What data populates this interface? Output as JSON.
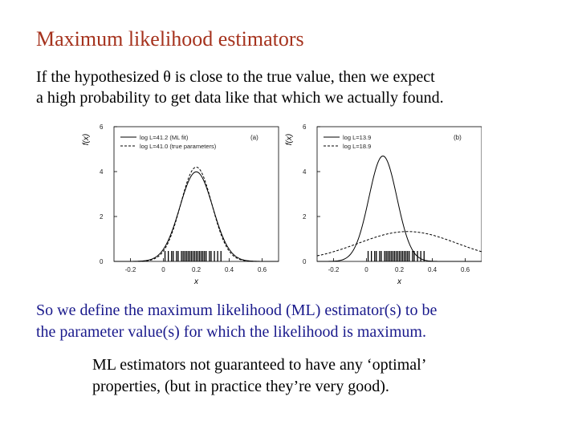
{
  "slide": {
    "title": "Maximum likelihood estimators",
    "intro_line1": "If the hypothesized θ is close to the true value, then we expect",
    "intro_line2": "a high probability to get data like that which we actually found.",
    "conclusion_line1": "So we define the maximum likelihood (ML) estimator(s) to be",
    "conclusion_line2": "the parameter value(s) for which the likelihood is maximum.",
    "note_line1": "ML estimators not guaranteed to have any ‘optimal’",
    "note_line2": "properties, (but in practice they’re very good)."
  },
  "chart_data": [
    {
      "type": "line",
      "panel_label": "(a)",
      "ylabel": "f(x)",
      "xlabel": "x",
      "xlim": [
        -0.3,
        0.7
      ],
      "ylim": [
        0,
        6
      ],
      "xticks": [
        -0.2,
        0,
        0.2,
        0.4,
        0.6
      ],
      "xtick_labels": [
        "-0.2",
        "0",
        "0.2",
        "0.4",
        "0.6"
      ],
      "yticks": [
        0,
        2,
        4,
        6
      ],
      "ytick_labels": [
        "0",
        "2",
        "4",
        "6"
      ],
      "series": [
        {
          "name": "log L=41.2 (ML fit)",
          "style": "solid",
          "mean": 0.2,
          "sigma": 0.1
        },
        {
          "name": "log L=41.0 (true parameters)",
          "style": "dashed",
          "mean": 0.2,
          "sigma": 0.095
        }
      ],
      "data_x": [
        0.01,
        0.03,
        0.05,
        0.06,
        0.08,
        0.09,
        0.11,
        0.12,
        0.13,
        0.14,
        0.15,
        0.16,
        0.17,
        0.18,
        0.19,
        0.2,
        0.21,
        0.22,
        0.23,
        0.24,
        0.25,
        0.26,
        0.28,
        0.29,
        0.31,
        0.33,
        0.35
      ]
    },
    {
      "type": "line",
      "panel_label": "(b)",
      "ylabel": "f(x)",
      "xlabel": "x",
      "xlim": [
        -0.3,
        0.7
      ],
      "ylim": [
        0,
        6
      ],
      "xticks": [
        -0.2,
        0,
        0.2,
        0.4,
        0.6
      ],
      "xtick_labels": [
        "-0.2",
        "0",
        "0.2",
        "0.4",
        "0.6"
      ],
      "yticks": [
        0,
        2,
        4,
        6
      ],
      "ytick_labels": [
        "0",
        "2",
        "4",
        "6"
      ],
      "series": [
        {
          "name": "log L=13.9",
          "style": "solid",
          "mean": 0.1,
          "sigma": 0.085
        },
        {
          "name": "log L=18.9",
          "style": "dashed",
          "mean": 0.25,
          "sigma": 0.3
        }
      ],
      "data_x": [
        0.01,
        0.03,
        0.05,
        0.06,
        0.08,
        0.09,
        0.11,
        0.12,
        0.13,
        0.14,
        0.15,
        0.16,
        0.17,
        0.18,
        0.19,
        0.2,
        0.21,
        0.22,
        0.23,
        0.24,
        0.25,
        0.26,
        0.28,
        0.29,
        0.31,
        0.33,
        0.35
      ]
    }
  ]
}
